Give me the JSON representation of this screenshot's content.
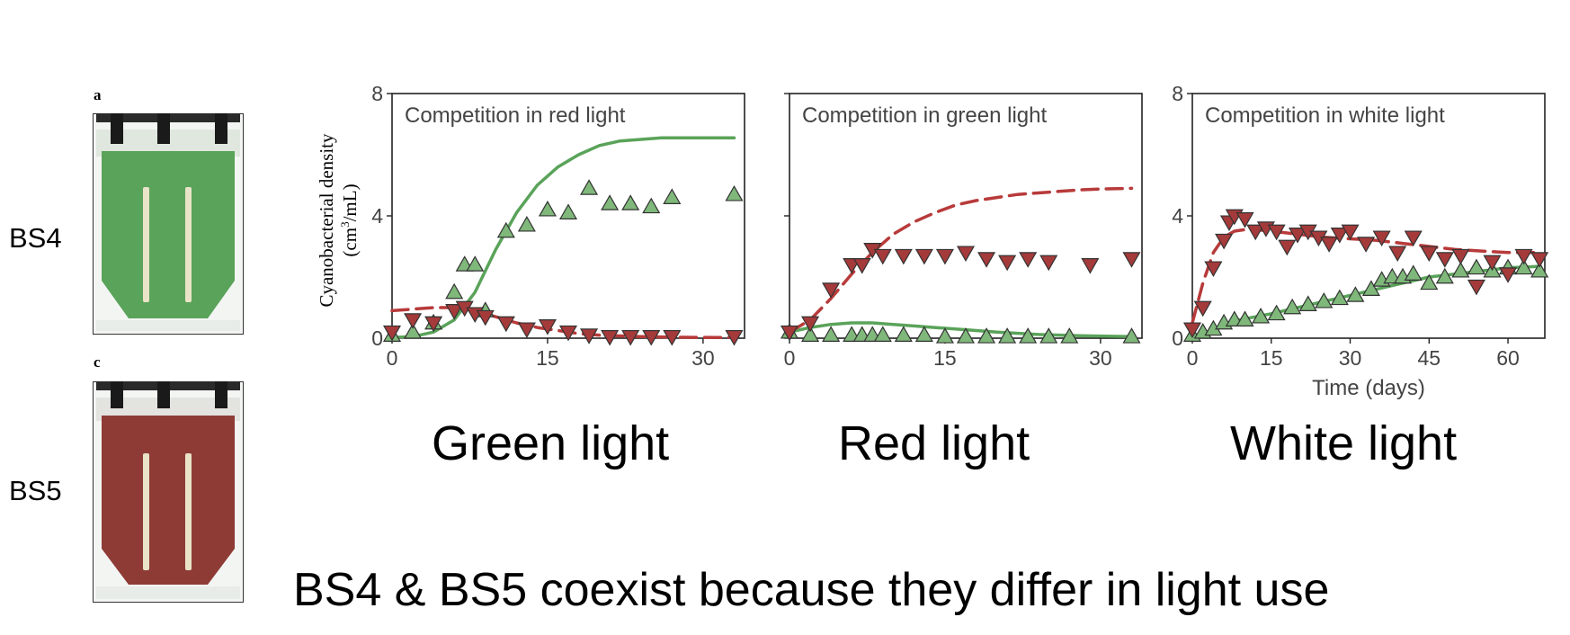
{
  "photos": [
    {
      "letter": "a",
      "strain": "BS4",
      "culture_color": "#5aa35a"
    },
    {
      "letter": "c",
      "strain": "BS5",
      "culture_color": "#8e3b36"
    }
  ],
  "y_axis_label": {
    "line1": "Cyanobacterial density",
    "line2_prefix": "(cm",
    "line2_sup": "3",
    "line2_suffix": "/mL)"
  },
  "captions": [
    "Green light",
    "Red light",
    "White light"
  ],
  "headline": "BS4 & BS5 coexist because they differ in light use",
  "colors": {
    "green_series": "#5aa35a",
    "red_series": "#b83a3a",
    "green_marker": "#7fb87a",
    "red_marker": "#a53a3a"
  },
  "chart_data": [
    {
      "type": "scatter",
      "title": "Competition in red light",
      "xlabel": "",
      "ylabel": "Cyanobacterial density (cm3/mL)",
      "xlim": [
        0,
        34
      ],
      "ylim": [
        0,
        8
      ],
      "xticks": [
        0,
        15,
        30
      ],
      "yticks": [
        0,
        4,
        8
      ],
      "series": [
        {
          "marker": "triangle-up",
          "color": "#7fb87a",
          "x": [
            0,
            2,
            4,
            6,
            7,
            8,
            9,
            11,
            13,
            15,
            17,
            19,
            21,
            23,
            25,
            27,
            33
          ],
          "y": [
            0.1,
            0.2,
            0.5,
            1.5,
            2.4,
            2.4,
            0.9,
            3.5,
            3.7,
            4.2,
            4.1,
            4.9,
            4.4,
            4.4,
            4.3,
            4.6,
            4.7
          ]
        },
        {
          "marker": "triangle-down",
          "color": "#a53a3a",
          "x": [
            0,
            2,
            4,
            6,
            7,
            8,
            9,
            11,
            13,
            15,
            17,
            19,
            21,
            23,
            25,
            27,
            33
          ],
          "y": [
            0.2,
            0.6,
            0.5,
            0.9,
            1.0,
            0.8,
            0.7,
            0.5,
            0.3,
            0.4,
            0.2,
            0.1,
            0.05,
            0.05,
            0.05,
            0.05,
            0.05
          ]
        },
        {
          "line": "solid",
          "color": "#5aa35a",
          "x": [
            0,
            2,
            4,
            6,
            8,
            10,
            12,
            14,
            16,
            18,
            20,
            22,
            24,
            26,
            28,
            30,
            33
          ],
          "y": [
            0.02,
            0.05,
            0.2,
            0.6,
            1.5,
            2.9,
            4.1,
            5.0,
            5.6,
            6.0,
            6.3,
            6.45,
            6.5,
            6.55,
            6.55,
            6.55,
            6.55
          ]
        },
        {
          "line": "dashed",
          "color": "#b83a3a",
          "x": [
            0,
            2,
            4,
            6,
            8,
            10,
            12,
            14,
            16,
            18,
            20,
            24,
            28,
            33
          ],
          "y": [
            0.9,
            0.95,
            1.0,
            1.0,
            0.9,
            0.7,
            0.5,
            0.35,
            0.25,
            0.15,
            0.1,
            0.05,
            0.03,
            0.02
          ]
        }
      ]
    },
    {
      "type": "scatter",
      "title": "Competition in green light",
      "xlabel": "",
      "ylabel": "",
      "xlim": [
        0,
        34
      ],
      "ylim": [
        0,
        8
      ],
      "xticks": [
        0,
        15,
        30
      ],
      "yticks": [
        0,
        4,
        8
      ],
      "series": [
        {
          "marker": "triangle-up",
          "color": "#7fb87a",
          "x": [
            0,
            2,
            4,
            6,
            7,
            8,
            9,
            11,
            13,
            15,
            17,
            19,
            21,
            23,
            25,
            27,
            33
          ],
          "y": [
            0.2,
            0.1,
            0.1,
            0.1,
            0.1,
            0.1,
            0.1,
            0.1,
            0.1,
            0.05,
            0.05,
            0.05,
            0.05,
            0.05,
            0.05,
            0.05,
            0.05
          ]
        },
        {
          "marker": "triangle-down",
          "color": "#a53a3a",
          "x": [
            0,
            2,
            4,
            6,
            7,
            8,
            9,
            11,
            13,
            15,
            17,
            19,
            21,
            23,
            25,
            29,
            33
          ],
          "y": [
            0.2,
            0.5,
            1.6,
            2.4,
            2.4,
            2.9,
            2.7,
            2.7,
            2.7,
            2.7,
            2.8,
            2.6,
            2.5,
            2.6,
            2.5,
            2.4,
            2.6
          ]
        },
        {
          "line": "solid",
          "color": "#5aa35a",
          "x": [
            0,
            2,
            4,
            6,
            8,
            10,
            12,
            14,
            16,
            18,
            20,
            24,
            28,
            33
          ],
          "y": [
            0.2,
            0.35,
            0.45,
            0.5,
            0.5,
            0.45,
            0.4,
            0.35,
            0.3,
            0.25,
            0.2,
            0.12,
            0.08,
            0.05
          ]
        },
        {
          "line": "dashed",
          "color": "#b83a3a",
          "x": [
            0,
            2,
            4,
            6,
            8,
            10,
            12,
            14,
            16,
            18,
            20,
            22,
            24,
            26,
            28,
            30,
            33
          ],
          "y": [
            0.2,
            0.6,
            1.3,
            2.1,
            2.8,
            3.4,
            3.8,
            4.1,
            4.35,
            4.5,
            4.6,
            4.7,
            4.75,
            4.8,
            4.85,
            4.88,
            4.9
          ]
        }
      ]
    },
    {
      "type": "scatter",
      "title": "Competition in white light",
      "xlabel": "Time (days)",
      "ylabel": "",
      "xlim": [
        0,
        67
      ],
      "ylim": [
        0,
        8
      ],
      "xticks": [
        0,
        15,
        30,
        45,
        60
      ],
      "yticks": [
        0,
        4,
        8
      ],
      "series": [
        {
          "marker": "triangle-up",
          "color": "#7fb87a",
          "x": [
            0,
            2,
            4,
            6,
            8,
            10,
            13,
            16,
            19,
            22,
            25,
            28,
            31,
            34,
            36,
            38,
            40,
            42,
            45,
            48,
            51,
            54,
            57,
            60,
            63,
            66
          ],
          "y": [
            0.1,
            0.2,
            0.3,
            0.5,
            0.6,
            0.6,
            0.7,
            0.8,
            1.0,
            1.1,
            1.2,
            1.3,
            1.4,
            1.6,
            1.9,
            2.0,
            2.0,
            2.1,
            1.8,
            2.0,
            2.2,
            2.3,
            2.2,
            2.3,
            2.3,
            2.2
          ]
        },
        {
          "marker": "triangle-down",
          "color": "#a53a3a",
          "x": [
            0,
            2,
            4,
            6,
            7,
            8,
            10,
            12,
            14,
            16,
            18,
            20,
            22,
            24,
            26,
            28,
            30,
            33,
            36,
            39,
            42,
            45,
            48,
            51,
            54,
            57,
            60,
            63,
            66
          ],
          "y": [
            0.3,
            1.0,
            2.3,
            3.2,
            3.8,
            4.0,
            3.9,
            3.5,
            3.6,
            3.5,
            3.0,
            3.4,
            3.5,
            3.3,
            3.1,
            3.4,
            3.5,
            3.1,
            3.3,
            2.8,
            3.3,
            2.8,
            2.6,
            2.7,
            1.7,
            2.5,
            2.1,
            2.7,
            2.6
          ]
        },
        {
          "line": "solid",
          "color": "#5aa35a",
          "x": [
            0,
            3,
            6,
            9,
            12,
            15,
            20,
            25,
            30,
            35,
            40,
            45,
            50,
            55,
            60,
            66
          ],
          "y": [
            0.05,
            0.2,
            0.4,
            0.6,
            0.7,
            0.8,
            1.0,
            1.2,
            1.4,
            1.6,
            1.8,
            2.0,
            2.1,
            2.2,
            2.3,
            2.35
          ]
        },
        {
          "line": "dashed",
          "color": "#b83a3a",
          "x": [
            0,
            2,
            4,
            6,
            8,
            10,
            12,
            15,
            20,
            25,
            30,
            35,
            40,
            45,
            50,
            55,
            60,
            66
          ],
          "y": [
            0.5,
            1.8,
            2.8,
            3.3,
            3.5,
            3.55,
            3.55,
            3.5,
            3.4,
            3.3,
            3.25,
            3.2,
            3.1,
            3.0,
            2.9,
            2.85,
            2.8,
            2.8
          ]
        }
      ]
    }
  ]
}
